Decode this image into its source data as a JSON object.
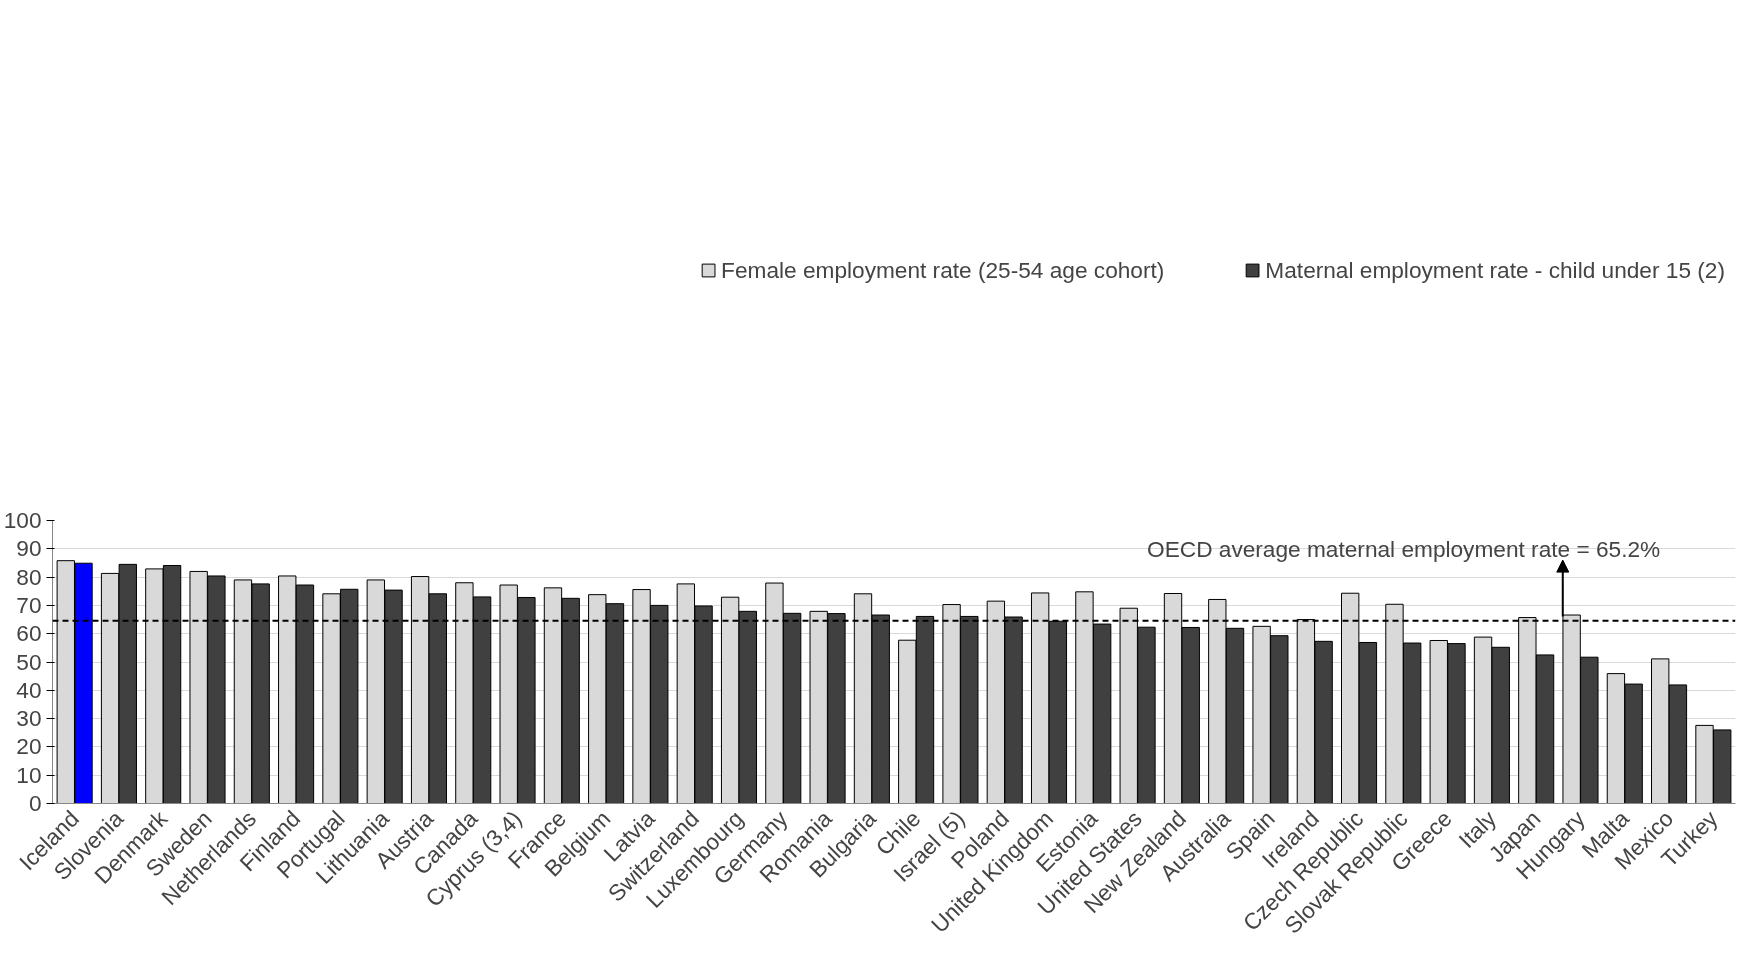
{
  "chart_data": {
    "type": "bar",
    "categories": [
      "Iceland",
      "Slovenia",
      "Denmark",
      "Sweden",
      "Netherlands",
      "Finland",
      "Portugal",
      "Lithuania",
      "Austria",
      "Canada",
      "Cyprus (3,4)",
      "France",
      "Belgium",
      "Latvia",
      "Switzerland",
      "Luxembourg",
      "Germany",
      "Romania",
      "Bulgaria",
      "Chile",
      "Israel (5)",
      "Poland",
      "United Kingdom",
      "Estonia",
      "United States",
      "New Zealand",
      "Australia",
      "Spain",
      "Ireland",
      "Czech Republic",
      "Slovak Republic",
      "Greece",
      "Italy",
      "Japan",
      "Hungary",
      "Malta",
      "Mexico",
      "Turkey"
    ],
    "series": [
      {
        "name": "Female employment rate (25-54 age cohort)",
        "color": "#d9d9d9",
        "values": [
          85.8,
          81.3,
          82.9,
          82.0,
          79.0,
          80.4,
          74.1,
          79.0,
          80.2,
          78.0,
          77.2,
          76.2,
          73.8,
          75.6,
          77.6,
          72.9,
          77.9,
          67.9,
          74.1,
          57.7,
          70.3,
          71.5,
          74.4,
          74.8,
          69.0,
          74.2,
          72.1,
          62.6,
          65.0,
          74.3,
          70.4,
          57.6,
          58.8,
          65.7,
          66.6,
          45.9,
          51.1,
          27.6
        ]
      },
      {
        "name": "Maternal employment rate - child under 15 (2)",
        "color": "#404040",
        "colors": [
          "#0000ff",
          "#404040",
          "#404040",
          "#404040",
          "#404040",
          "#404040",
          "#404040",
          "#404040",
          "#404040",
          "#404040",
          "#404040",
          "#404040",
          "#404040",
          "#404040",
          "#404040",
          "#404040",
          "#404040",
          "#404040",
          "#404040",
          "#404040",
          "#404040",
          "#404040",
          "#404040",
          "#404040",
          "#404040",
          "#404040",
          "#404040",
          "#404040",
          "#404040",
          "#404040",
          "#404040",
          "#404040",
          "#404040",
          "#404040",
          "#404040",
          "#404040",
          "#404040",
          "#404040"
        ],
        "values": [
          84.9,
          84.5,
          84.1,
          80.4,
          77.6,
          77.2,
          75.7,
          75.4,
          74.1,
          73.0,
          72.8,
          72.5,
          70.6,
          70.0,
          69.8,
          67.9,
          67.2,
          67.1,
          66.6,
          66.1,
          66.1,
          65.9,
          64.4,
          63.4,
          62.3,
          62.2,
          61.9,
          59.3,
          57.3,
          56.9,
          56.7,
          56.5,
          55.2,
          52.5,
          51.7,
          42.2,
          41.9,
          26.0
        ]
      }
    ],
    "ylim": [
      0,
      100
    ],
    "yticks": [
      0,
      10,
      20,
      30,
      40,
      50,
      60,
      70,
      80,
      90,
      100
    ],
    "grid": "y",
    "legend": "top",
    "ref_lines": [
      {
        "axis": "y",
        "value": 64.6,
        "color": "#000000",
        "line_style": "dashed"
      }
    ],
    "annotations": [
      "OECD average maternal employment rate = 65.2%"
    ]
  }
}
